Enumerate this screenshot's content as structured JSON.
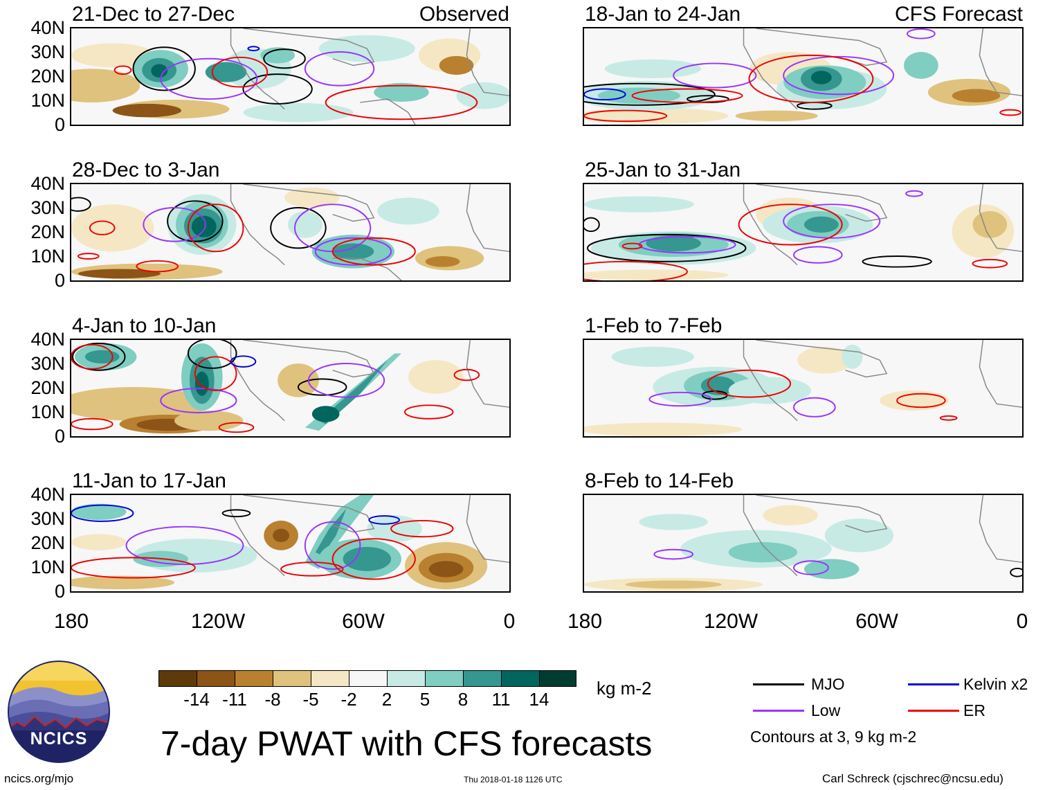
{
  "header": {
    "observed_label": "Observed",
    "forecast_label": "CFS Forecast"
  },
  "panels": [
    {
      "title": "21-Dec to 27-Dec"
    },
    {
      "title": "28-Dec to 3-Jan"
    },
    {
      "title": "4-Jan to 10-Jan"
    },
    {
      "title": "11-Jan to 17-Jan"
    },
    {
      "title": "18-Jan to 24-Jan"
    },
    {
      "title": "25-Jan to 31-Jan"
    },
    {
      "title": "1-Feb to 7-Feb"
    },
    {
      "title": "8-Feb to 14-Feb"
    }
  ],
  "axes": {
    "lat_labels": [
      "40N",
      "30N",
      "20N",
      "10N",
      "0"
    ],
    "lon_labels": [
      "180",
      "120W",
      "60W",
      "0"
    ]
  },
  "colorbar": {
    "colors": [
      "#5e3a0b",
      "#8c5416",
      "#b9812f",
      "#dfc27d",
      "#f5e7c4",
      "#f7f7f7",
      "#c7eae5",
      "#80cdc1",
      "#35978f",
      "#01665e",
      "#003c30"
    ],
    "labels": [
      "-14",
      "-11",
      "-8",
      "-5",
      "-2",
      "2",
      "5",
      "8",
      "11",
      "14"
    ],
    "units": "kg m-2"
  },
  "legend": {
    "items": [
      {
        "label": "MJO",
        "color": "#000000"
      },
      {
        "label": "Low",
        "color": "#9933ff"
      },
      {
        "label": "Kelvin x2",
        "color": "#0000dd"
      },
      {
        "label": "ER",
        "color": "#ee0000"
      }
    ],
    "note": "Contours at 3, 9 kg m-2"
  },
  "footer": {
    "title": "7-day PWAT with CFS forecasts",
    "logo_text": "NCICS",
    "site": "ncics.org/mjo",
    "timestamp": "Thu 2018-01-18 1126 UTC",
    "credit": "Carl Schreck (cjschrec@ncsu.edu)"
  }
}
